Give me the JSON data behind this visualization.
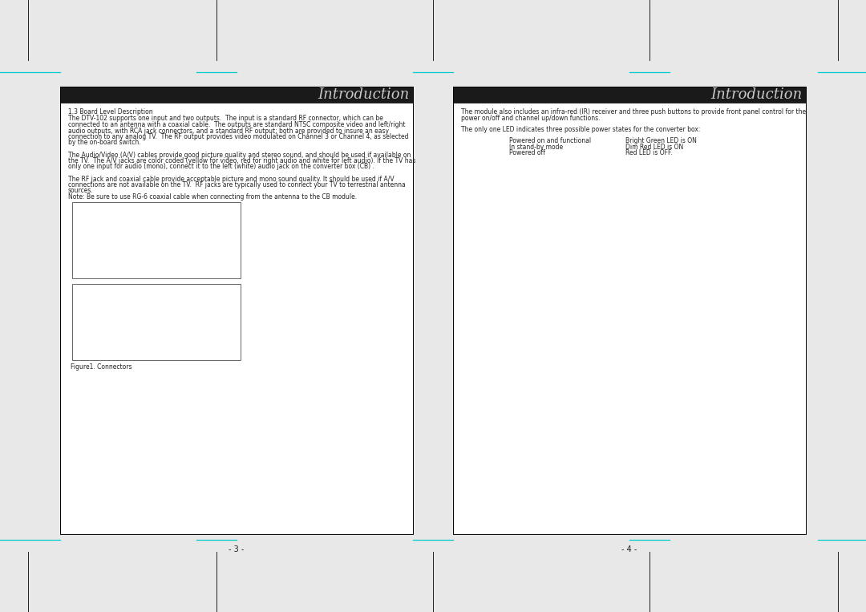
{
  "bg_color": "#e8e8e8",
  "cyan_line_color": "#00cccc",
  "header_title": "Introduction",
  "page1": {
    "section_heading": "1.3 Board Level Description",
    "para1": "The DTV-102 supports one input and two outputs.  The input is a standard RF connector, which can be\nconnected to an antenna with a coaxial cable.  The outputs are standard NTSC composite video and left/right\naudio outputs, with RCA jack connectors, and a standard RF output; both are provided to insure an easy\nconnection to any analog TV.  The RF output provides video modulated on Channel 3 or Channel 4, as selected\nby the on-board switch.",
    "para2": "The Audio/Video (A/V) cables provide good picture quality and stereo sound, and should be used if available on\nthe TV.  The A/V jacks are color coded (yellow for video, red for right audio and white for left audio). If the TV has\nonly one input for audio (mono), connect it to the left (white) audio jack on the converter box (CB) .",
    "para3": "The RF jack and coaxial cable provide acceptable picture and mono sound quality. It should be used if A/V\nconnections are not available on the TV.  RF jacks are typically used to connect your TV to terrestrial antenna\nsources.",
    "note": "Note: Be sure to use RG-6 coaxial cable when connecting from the antenna to the CB module.",
    "figure_caption": "Figure1. Connectors",
    "page_num": "- 3 -"
  },
  "page2": {
    "para1": "The module also includes an infra-red (IR) receiver and three push buttons to provide front panel control for the\npower on/off and channel up/down functions.",
    "para2": "The only one LED indicates three possible power states for the converter box:",
    "led_left": [
      "Powered on and functional",
      "In stand-by mode",
      "Powered off"
    ],
    "led_right": [
      "Bright Green LED is ON",
      "Dim Red LED is ON",
      "Red LED is OFF."
    ],
    "page_num": "- 4 -"
  }
}
